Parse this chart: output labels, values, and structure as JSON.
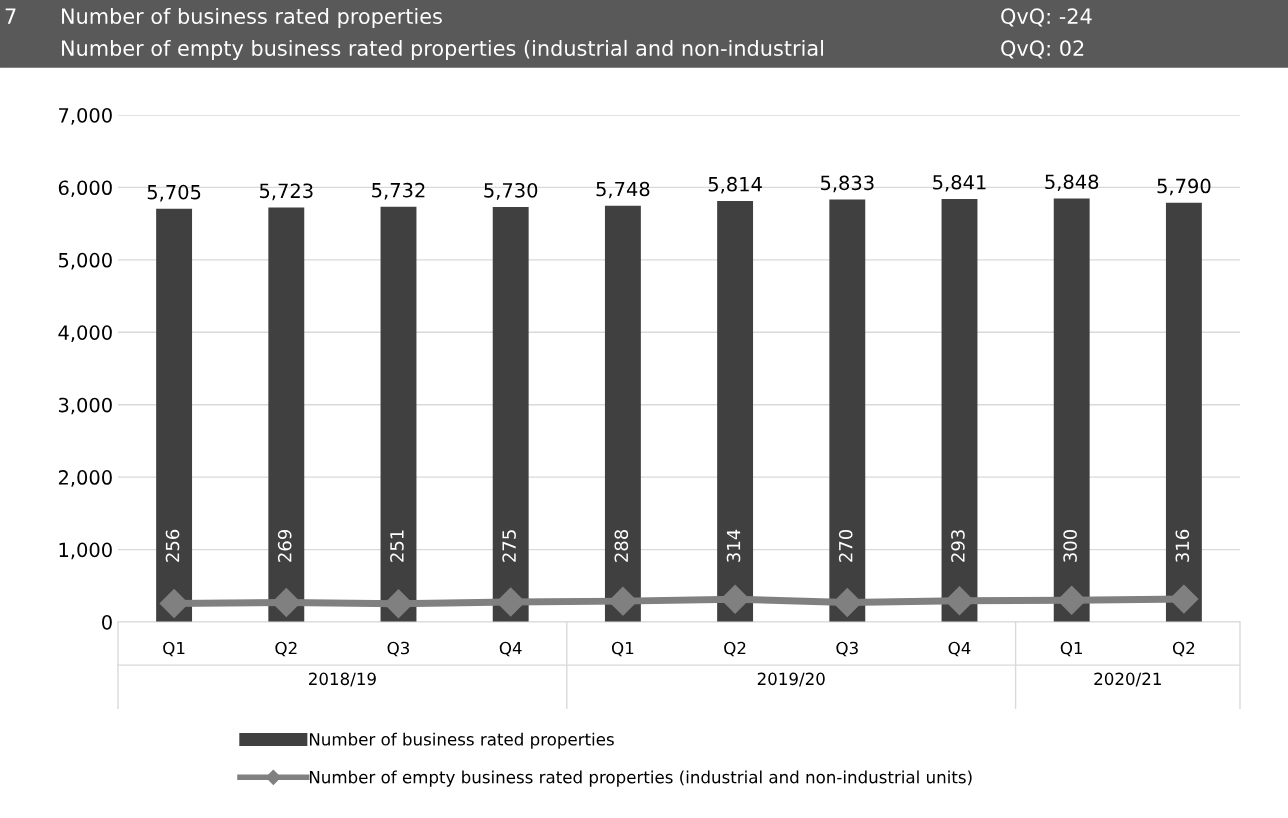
{
  "chart_data": {
    "type": "bar",
    "title": "Number of business rated properties",
    "subtitle": "Number of empty business rated properties (industrial and non-industrial",
    "annotations": [
      "7",
      "QvQ: -24",
      "QvQ: 02",
      "2018/19",
      "2019/20",
      "2020/21"
    ],
    "categories": [
      "Q1",
      "Q2",
      "Q3",
      "Q4",
      "Q1",
      "Q2",
      "Q3",
      "Q4",
      "Q1",
      "Q2"
    ],
    "series": [
      {
        "name": "Number of business rated properties",
        "color": "#404040",
        "values": [
          5705,
          5723,
          5732,
          5730,
          5748,
          5814,
          5833,
          5841,
          5848,
          5790
        ],
        "value_labels": [
          "5,705",
          "5,723",
          "5,732",
          "5,730",
          "5,748",
          "5,814",
          "5,833",
          "5,841",
          "5,848",
          "5,790"
        ]
      },
      {
        "name": "Number of empty business rated properties (industrial and non-industrial units)",
        "type": "line",
        "color": "#808080",
        "marker": "diamond",
        "values": [
          256,
          269,
          251,
          275,
          288,
          314,
          270,
          293,
          300,
          316
        ]
      }
    ],
    "ylim": [
      0,
      7000
    ],
    "yticks": [
      {
        "value": 0,
        "label": "0"
      },
      {
        "value": 1000,
        "label": "1,000"
      },
      {
        "value": 2000,
        "label": "2,000"
      },
      {
        "value": 3000,
        "label": "3,000"
      },
      {
        "value": 4000,
        "label": "4,000"
      },
      {
        "value": 5000,
        "label": "5,000"
      },
      {
        "value": 6000,
        "label": "6,000"
      },
      {
        "value": 7000,
        "label": "7,000"
      }
    ],
    "grid": "y",
    "legend": "bottom",
    "data_labels": true
  }
}
